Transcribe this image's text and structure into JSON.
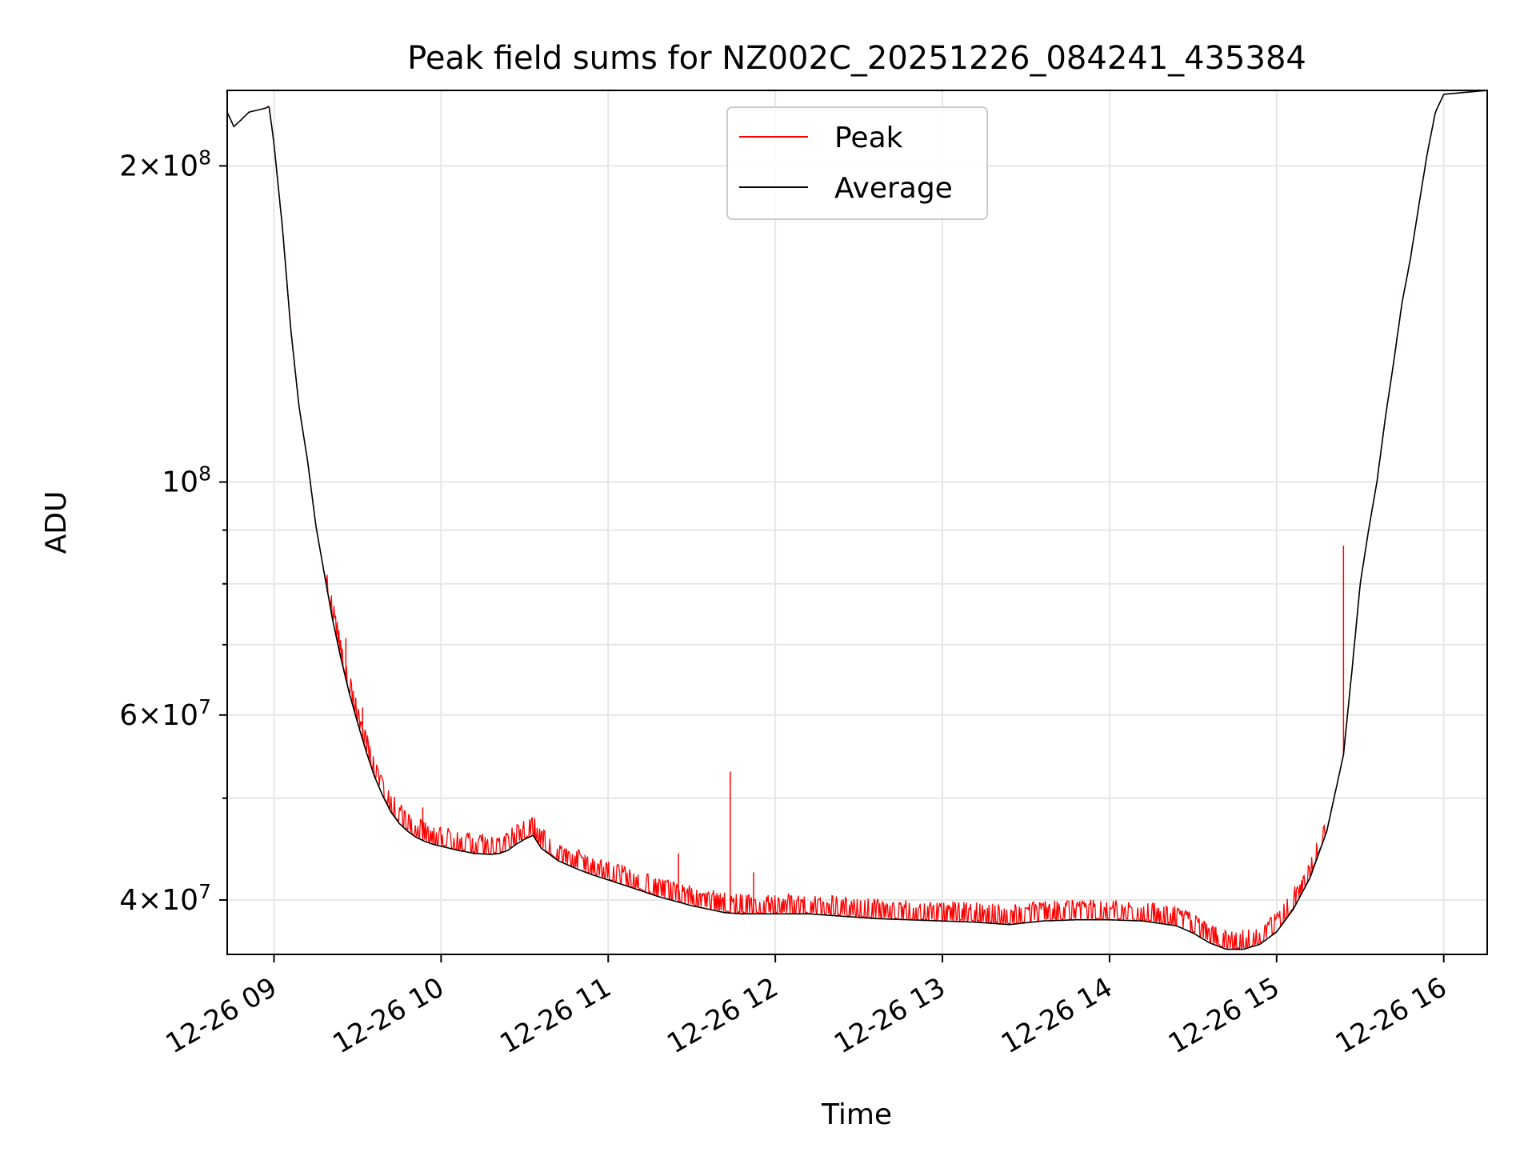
{
  "chart_data": {
    "type": "line",
    "title": "Peak field sums for NZ002C_20251226_084241_435384",
    "xlabel": "Time",
    "ylabel": "ADU",
    "yscale": "log",
    "xlim": [
      8.72,
      16.26
    ],
    "ylim": [
      35500000,
      236000000
    ],
    "grid": true,
    "legend_position": "top-center",
    "x_ticks": [
      {
        "value": 9,
        "label": "12-26 09"
      },
      {
        "value": 10,
        "label": "12-26 10"
      },
      {
        "value": 11,
        "label": "12-26 11"
      },
      {
        "value": 12,
        "label": "12-26 12"
      },
      {
        "value": 13,
        "label": "12-26 13"
      },
      {
        "value": 14,
        "label": "12-26 14"
      },
      {
        "value": 15,
        "label": "12-26 15"
      },
      {
        "value": 16,
        "label": "12-26 16"
      }
    ],
    "y_major_ticks": [
      {
        "value": 40000000,
        "mant": "4",
        "exp": "7"
      },
      {
        "value": 60000000,
        "mant": "6",
        "exp": "7"
      },
      {
        "value": 100000000,
        "mant": "",
        "exp": "8"
      },
      {
        "value": 200000000,
        "mant": "2",
        "exp": "8"
      }
    ],
    "y_minor_ticks": [
      50000000,
      70000000,
      80000000,
      90000000,
      300000000
    ],
    "series": [
      {
        "name": "Peak",
        "color": "#ff0000",
        "role": "peak",
        "spikes": [
          {
            "x": 11.73,
            "y": 53000000
          },
          {
            "x": 11.42,
            "y": 44300000
          },
          {
            "x": 11.87,
            "y": 42500000
          },
          {
            "x": 9.43,
            "y": 71000000
          },
          {
            "x": 9.53,
            "y": 61000000
          },
          {
            "x": 9.89,
            "y": 49000000
          },
          {
            "x": 10.56,
            "y": 47500000
          },
          {
            "x": 15.4,
            "y": 87000000
          }
        ]
      },
      {
        "name": "Average",
        "color": "#000000",
        "role": "average",
        "x": [
          8.72,
          8.76,
          8.8,
          8.85,
          8.9,
          8.95,
          8.97,
          9.0,
          9.05,
          9.1,
          9.15,
          9.2,
          9.25,
          9.3,
          9.35,
          9.4,
          9.45,
          9.5,
          9.55,
          9.6,
          9.65,
          9.7,
          9.75,
          9.8,
          9.85,
          9.9,
          9.95,
          10.0,
          10.1,
          10.2,
          10.3,
          10.35,
          10.4,
          10.45,
          10.5,
          10.55,
          10.6,
          10.7,
          10.8,
          10.9,
          11.0,
          11.1,
          11.2,
          11.3,
          11.4,
          11.5,
          11.6,
          11.7,
          11.8,
          12.0,
          12.2,
          12.4,
          12.6,
          12.8,
          13.0,
          13.2,
          13.4,
          13.6,
          13.8,
          14.0,
          14.2,
          14.4,
          14.5,
          14.6,
          14.7,
          14.8,
          14.9,
          15.0,
          15.1,
          15.2,
          15.3,
          15.4,
          15.45,
          15.5,
          15.55,
          15.6,
          15.65,
          15.7,
          15.75,
          15.8,
          15.85,
          15.9,
          15.95,
          16.0,
          16.26
        ],
        "y": [
          225000000,
          218000000,
          221000000,
          225000000,
          226000000,
          227000000,
          228000000,
          210000000,
          175000000,
          140000000,
          118000000,
          105000000,
          91000000,
          82000000,
          74000000,
          68000000,
          63000000,
          59000000,
          55500000,
          52500000,
          50300000,
          48500000,
          47300000,
          46500000,
          45900000,
          45500000,
          45200000,
          45000000,
          44600000,
          44300000,
          44200000,
          44300000,
          44600000,
          45200000,
          45700000,
          46100000,
          44800000,
          43600000,
          42900000,
          42300000,
          41800000,
          41300000,
          40800000,
          40300000,
          39900000,
          39500000,
          39200000,
          38900000,
          38800000,
          38800000,
          38800000,
          38600000,
          38400000,
          38300000,
          38200000,
          38100000,
          37900000,
          38200000,
          38300000,
          38300000,
          38200000,
          37800000,
          37200000,
          36400000,
          35900000,
          35900000,
          36300000,
          37300000,
          39200000,
          42000000,
          46500000,
          55000000,
          66000000,
          80000000,
          90000000,
          100000000,
          115000000,
          130000000,
          148000000,
          163000000,
          183000000,
          205000000,
          225000000,
          234000000,
          236000000
        ]
      }
    ]
  }
}
